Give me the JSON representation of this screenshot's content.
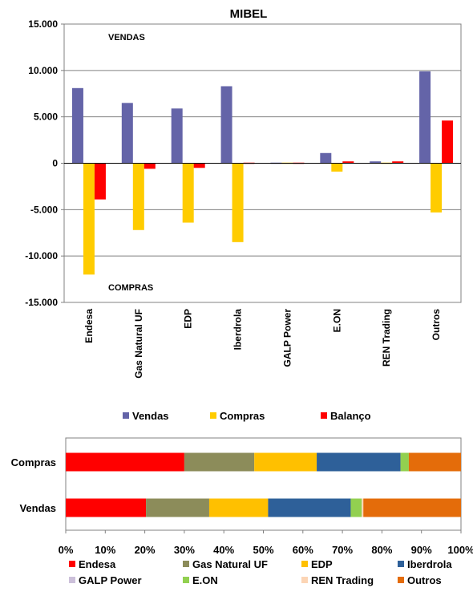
{
  "chart_data": [
    {
      "type": "bar",
      "title": "MIBEL",
      "categories": [
        "Endesa",
        "Gas Natural UF",
        "EDP",
        "Iberdrola",
        "GALP Power",
        "E.ON",
        "REN Trading",
        "Outros"
      ],
      "series": [
        {
          "name": "Vendas",
          "values": [
            8100,
            6500,
            5900,
            8300,
            0,
            1100,
            200,
            9900
          ],
          "color": "#6464a8"
        },
        {
          "name": "Compras",
          "values": [
            -12000,
            -7200,
            -6400,
            -8500,
            -100,
            -900,
            0,
            -5300
          ],
          "color": "#ffcc00"
        },
        {
          "name": "Balanço",
          "values": [
            -3900,
            -600,
            -500,
            -100,
            -100,
            200,
            200,
            4600
          ],
          "color": "#ff0000"
        }
      ],
      "ylim": [
        -15000,
        15000
      ],
      "yticks": [
        15000,
        10000,
        5000,
        0,
        -5000,
        -10000,
        -15000
      ],
      "ytick_labels": [
        "15.000",
        "10.000",
        "5.000",
        "0",
        "-5.000",
        "-10.000",
        "-15.000"
      ],
      "annotations": [
        "VENDAS",
        "COMPRAS"
      ],
      "grid": true,
      "legend": "bottom"
    },
    {
      "type": "bar",
      "orientation": "horizontal",
      "stacked": "percent",
      "categories": [
        "Compras",
        "Vendas"
      ],
      "series": [
        {
          "name": "Endesa",
          "values": [
            30.0,
            20.3
          ],
          "color": "#ff0000"
        },
        {
          "name": "Gas Natural UF",
          "values": [
            17.7,
            16.0
          ],
          "color": "#8c8c5a"
        },
        {
          "name": "EDP",
          "values": [
            15.8,
            14.9
          ],
          "color": "#ffc000"
        },
        {
          "name": "Iberdrola",
          "values": [
            21.2,
            20.9
          ],
          "color": "#2e6099"
        },
        {
          "name": "GALP Power",
          "values": [
            0.0,
            0.0
          ],
          "color": "#ccc0da"
        },
        {
          "name": "E.ON",
          "values": [
            2.1,
            2.8
          ],
          "color": "#92d050"
        },
        {
          "name": "REN Trading",
          "values": [
            0.0,
            0.4
          ],
          "color": "#fcd5b5"
        },
        {
          "name": "Outros",
          "values": [
            13.2,
            24.7
          ],
          "color": "#e46c0a"
        }
      ],
      "xlim": [
        0,
        100
      ],
      "xticks": [
        0,
        10,
        20,
        30,
        40,
        50,
        60,
        70,
        80,
        90,
        100
      ],
      "xtick_labels": [
        "0%",
        "10%",
        "20%",
        "30%",
        "40%",
        "50%",
        "60%",
        "70%",
        "80%",
        "90%",
        "100%"
      ],
      "grid": false,
      "legend": "bottom"
    }
  ]
}
